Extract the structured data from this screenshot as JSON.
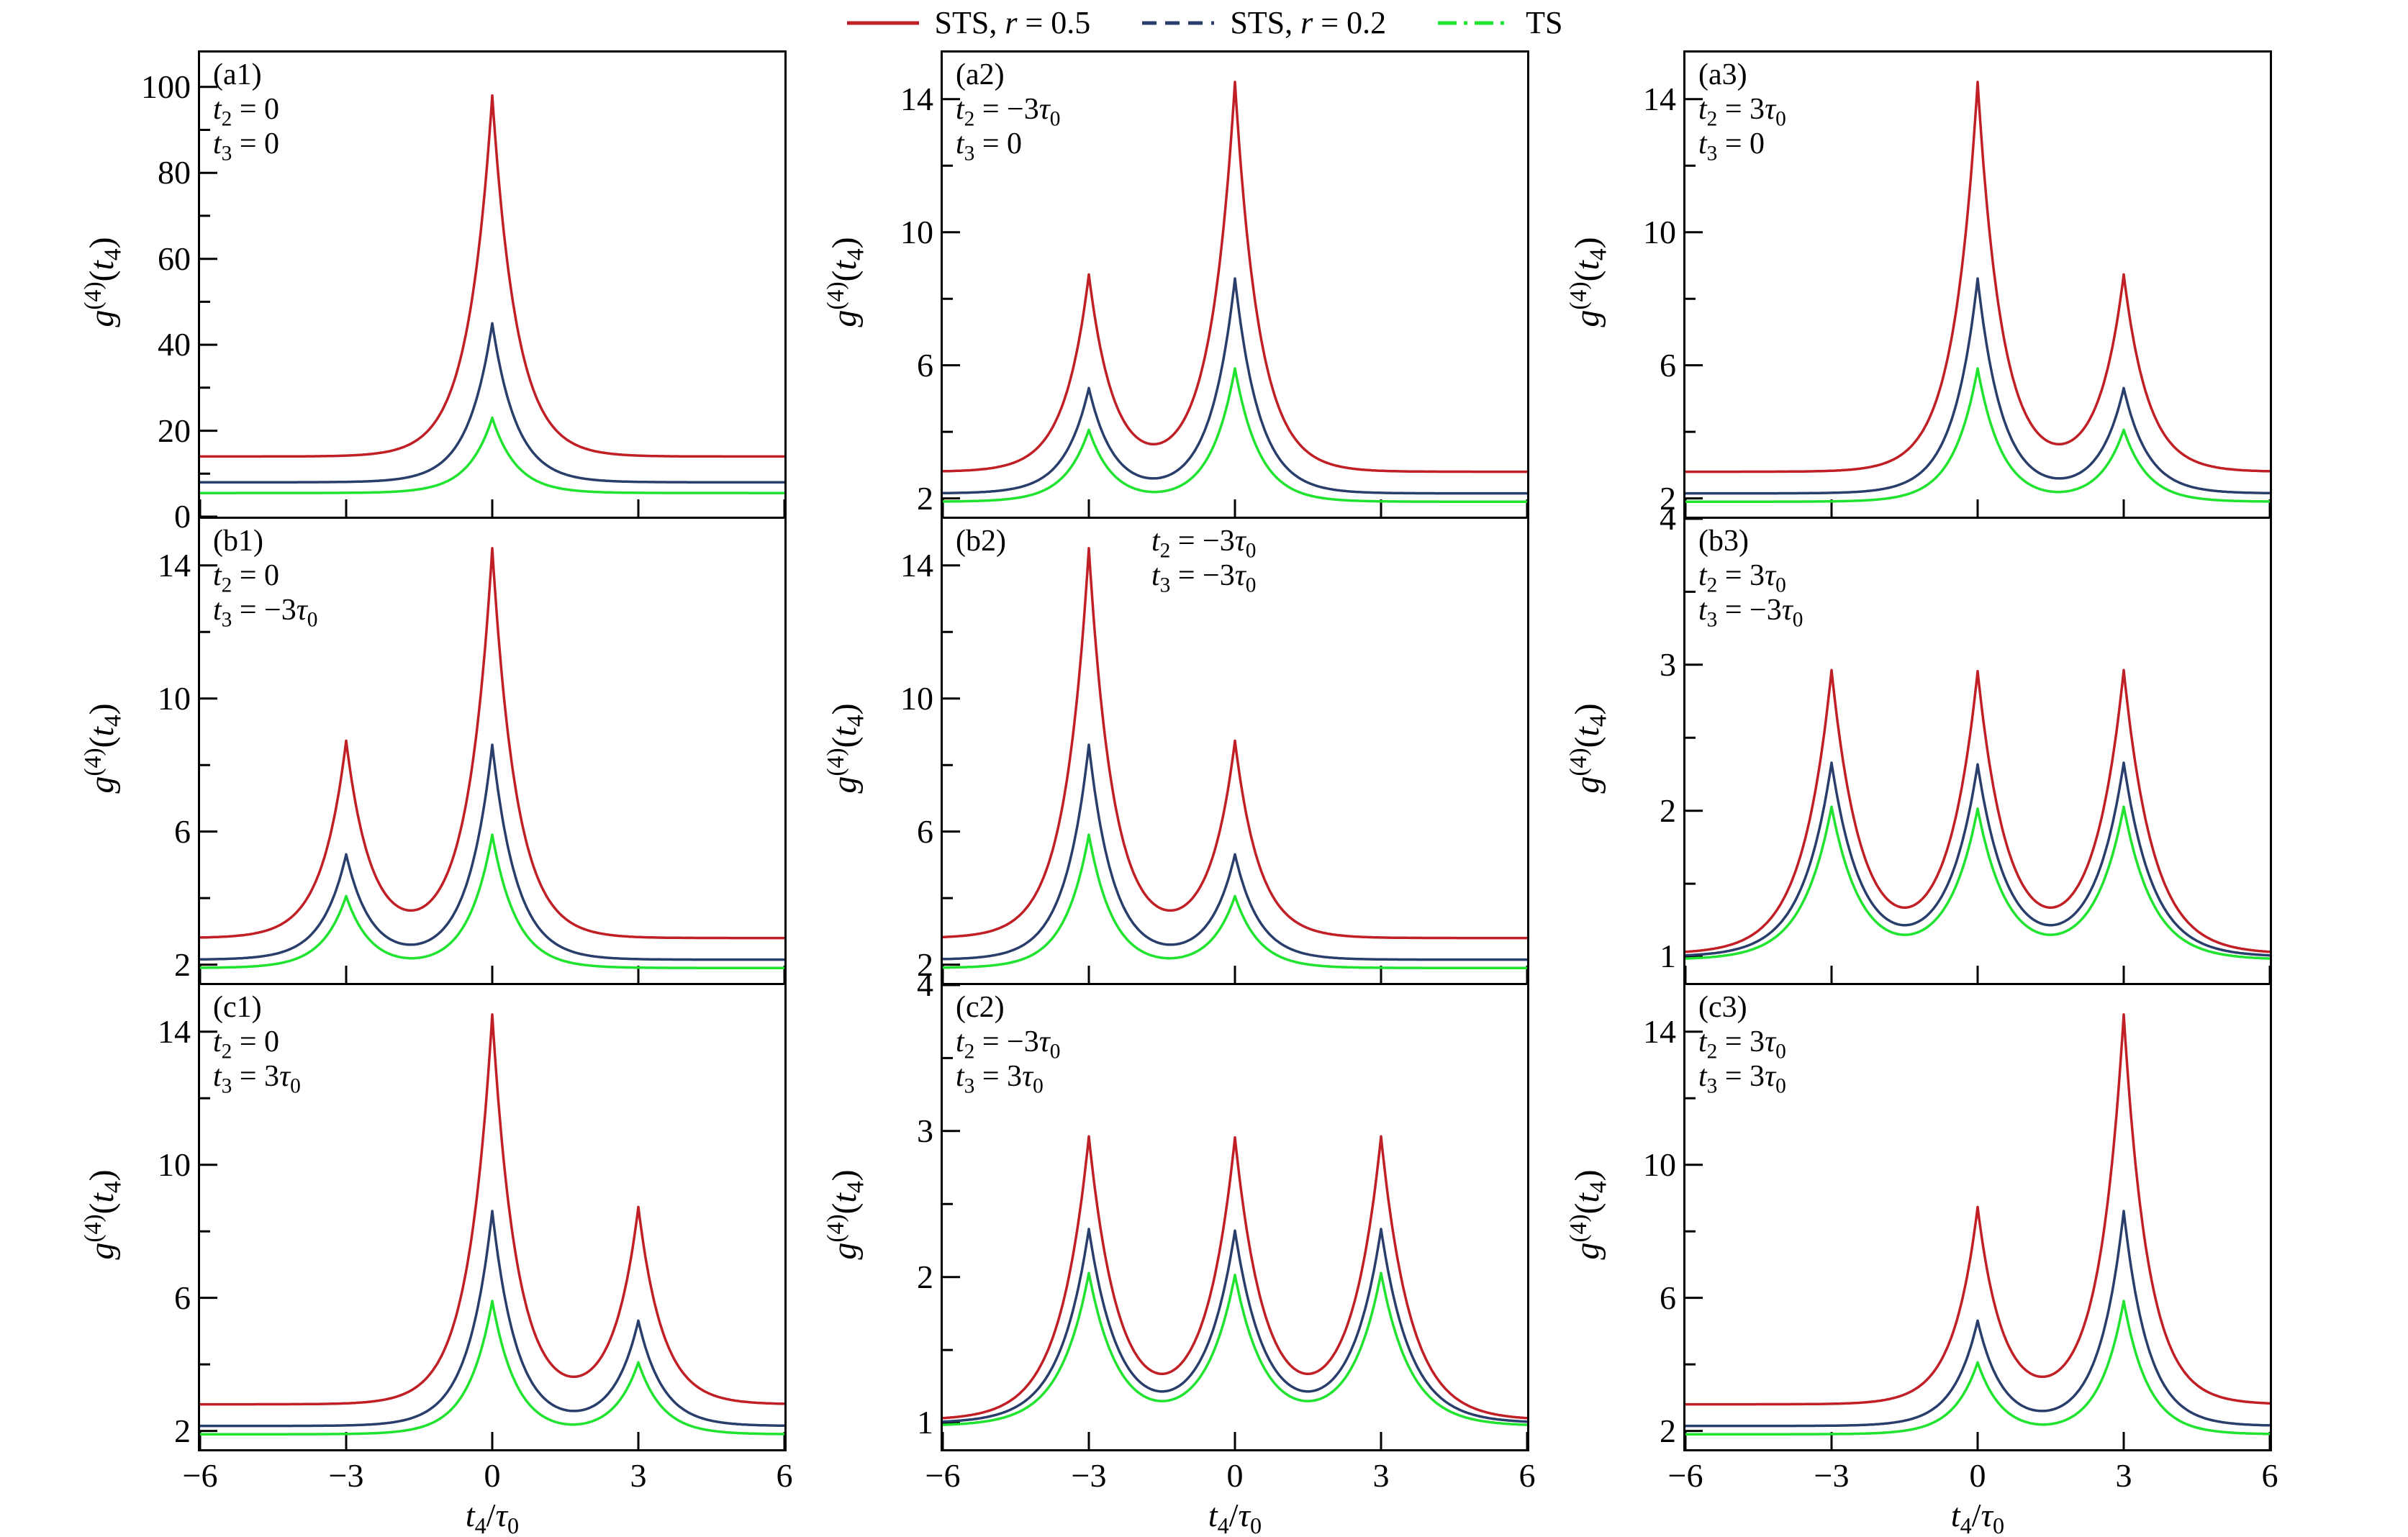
{
  "legend": {
    "items": [
      {
        "label": "STS, r = 0.5",
        "color": "#c01f25",
        "style": "solid"
      },
      {
        "label": "STS, r = 0.2",
        "color": "#2a3e6c",
        "style": "dashed"
      },
      {
        "label": "TS",
        "color": "#1fe32f",
        "style": "dashdot"
      }
    ]
  },
  "axes": {
    "xlabel": "t_4/τ_0",
    "ylabel": "g^(4)(t_4)",
    "x_range": [
      -6,
      6
    ],
    "x_ticks": [
      -6,
      -3,
      0,
      3,
      6
    ],
    "x_tick_labels": [
      "−6",
      "−3",
      "0",
      "3",
      "6"
    ],
    "grid": false,
    "legend_position": "top-center"
  },
  "series_colors": [
    "#c01f25",
    "#2a3e6c",
    "#1fe32f"
  ],
  "series_names": [
    "STS, r = 0.5",
    "STS, r = 0.2",
    "TS"
  ],
  "chart_data": [
    {
      "type": "line",
      "id": "a1",
      "label": "(a1)",
      "params": [
        "t_2 = 0",
        "t_3 = 0"
      ],
      "params_offset": false,
      "y_range": [
        0,
        108
      ],
      "y_ticks": [
        0,
        20,
        40,
        60,
        80,
        100
      ],
      "y_minor": [
        10,
        30,
        50,
        70,
        90
      ],
      "peak_centers": [
        0
      ],
      "peak_width": 0.5,
      "series": [
        {
          "name": "STS, r = 0.5",
          "baseline": 14,
          "peak_heights": [
            98
          ]
        },
        {
          "name": "STS, r = 0.2",
          "baseline": 8,
          "peak_heights": [
            45
          ]
        },
        {
          "name": "TS",
          "baseline": 5.5,
          "peak_heights": [
            23
          ]
        }
      ]
    },
    {
      "type": "line",
      "id": "a2",
      "label": "(a2)",
      "params": [
        "t_2 = −3τ_0",
        "t_3 = 0"
      ],
      "params_offset": false,
      "y_range": [
        1.45,
        15.4
      ],
      "y_ticks": [
        2,
        6,
        10,
        14
      ],
      "y_minor": [
        4,
        8,
        12
      ],
      "peak_centers": [
        -3,
        0
      ],
      "peak_width": 0.5,
      "series": [
        {
          "name": "STS, r = 0.5",
          "baseline": 2.8,
          "peak_heights": [
            8.7,
            14.5
          ]
        },
        {
          "name": "STS, r = 0.2",
          "baseline": 2.15,
          "peak_heights": [
            5.3,
            8.6
          ]
        },
        {
          "name": "TS",
          "baseline": 1.9,
          "peak_heights": [
            4.05,
            5.9
          ]
        }
      ]
    },
    {
      "type": "line",
      "id": "a3",
      "label": "(a3)",
      "params": [
        "t_2 = 3τ_0",
        "t_3 = 0"
      ],
      "params_offset": false,
      "y_range": [
        1.45,
        15.4
      ],
      "y_ticks": [
        2,
        6,
        10,
        14
      ],
      "y_minor": [
        4,
        8,
        12
      ],
      "peak_centers": [
        0,
        3
      ],
      "peak_width": 0.5,
      "series": [
        {
          "name": "STS, r = 0.5",
          "baseline": 2.8,
          "peak_heights": [
            14.5,
            8.7
          ]
        },
        {
          "name": "STS, r = 0.2",
          "baseline": 2.15,
          "peak_heights": [
            8.6,
            5.3
          ]
        },
        {
          "name": "TS",
          "baseline": 1.9,
          "peak_heights": [
            5.9,
            4.05
          ]
        }
      ]
    },
    {
      "type": "line",
      "id": "b1",
      "label": "(b1)",
      "params": [
        "t_2 = 0",
        "t_3 = −3τ_0"
      ],
      "params_offset": false,
      "y_range": [
        1.45,
        15.4
      ],
      "y_ticks": [
        2,
        6,
        10,
        14
      ],
      "y_minor": [
        4,
        8,
        12
      ],
      "peak_centers": [
        -3,
        0
      ],
      "peak_width": 0.5,
      "series": [
        {
          "name": "STS, r = 0.5",
          "baseline": 2.8,
          "peak_heights": [
            8.7,
            14.5
          ]
        },
        {
          "name": "STS, r = 0.2",
          "baseline": 2.15,
          "peak_heights": [
            5.3,
            8.6
          ]
        },
        {
          "name": "TS",
          "baseline": 1.9,
          "peak_heights": [
            4.05,
            5.9
          ]
        }
      ]
    },
    {
      "type": "line",
      "id": "b2",
      "label": "(b2)",
      "params": [
        "t_2 = −3τ_0",
        "t_3 = −3τ_0"
      ],
      "params_offset": true,
      "y_range": [
        1.45,
        15.4
      ],
      "y_ticks": [
        2,
        6,
        10,
        14
      ],
      "y_minor": [
        4,
        8,
        12
      ],
      "peak_centers": [
        -3,
        0
      ],
      "peak_width": 0.5,
      "series": [
        {
          "name": "STS, r = 0.5",
          "baseline": 2.8,
          "peak_heights": [
            14.5,
            8.7
          ]
        },
        {
          "name": "STS, r = 0.2",
          "baseline": 2.15,
          "peak_heights": [
            8.6,
            5.3
          ]
        },
        {
          "name": "TS",
          "baseline": 1.9,
          "peak_heights": [
            5.9,
            4.05
          ]
        }
      ]
    },
    {
      "type": "line",
      "id": "b3",
      "label": "(b3)",
      "params": [
        "t_2 = 3τ_0",
        "t_3 = −3τ_0"
      ],
      "params_offset": false,
      "y_range": [
        0.82,
        4
      ],
      "y_ticks": [
        1,
        2,
        3,
        4
      ],
      "y_minor": [
        1.5,
        2.5,
        3.5
      ],
      "peak_centers": [
        -3,
        0,
        3
      ],
      "peak_width": 0.6,
      "series": [
        {
          "name": "STS, r = 0.5",
          "baseline": 1.02,
          "peak_heights": [
            2.95,
            2.93,
            2.95
          ]
        },
        {
          "name": "STS, r = 0.2",
          "baseline": 1.0,
          "peak_heights": [
            2.32,
            2.3,
            2.32
          ]
        },
        {
          "name": "TS",
          "baseline": 0.98,
          "peak_heights": [
            2.02,
            2.0,
            2.02
          ]
        }
      ]
    },
    {
      "type": "line",
      "id": "c1",
      "label": "(c1)",
      "params": [
        "t_2 = 0",
        "t_3 = 3τ_0"
      ],
      "params_offset": false,
      "y_range": [
        1.45,
        15.4
      ],
      "y_ticks": [
        2,
        6,
        10,
        14
      ],
      "y_minor": [
        4,
        8,
        12
      ],
      "peak_centers": [
        0,
        3
      ],
      "peak_width": 0.5,
      "series": [
        {
          "name": "STS, r = 0.5",
          "baseline": 2.8,
          "peak_heights": [
            14.5,
            8.7
          ]
        },
        {
          "name": "STS, r = 0.2",
          "baseline": 2.15,
          "peak_heights": [
            8.6,
            5.3
          ]
        },
        {
          "name": "TS",
          "baseline": 1.9,
          "peak_heights": [
            5.9,
            4.05
          ]
        }
      ]
    },
    {
      "type": "line",
      "id": "c2",
      "label": "(c2)",
      "params": [
        "t_2 = −3τ_0",
        "t_3 = 3τ_0"
      ],
      "params_offset": false,
      "y_range": [
        0.82,
        4
      ],
      "y_ticks": [
        1,
        2,
        3,
        4
      ],
      "y_minor": [
        1.5,
        2.5,
        3.5
      ],
      "peak_centers": [
        -3,
        0,
        3
      ],
      "peak_width": 0.6,
      "series": [
        {
          "name": "STS, r = 0.5",
          "baseline": 1.02,
          "peak_heights": [
            2.95,
            2.93,
            2.95
          ]
        },
        {
          "name": "STS, r = 0.2",
          "baseline": 1.0,
          "peak_heights": [
            2.32,
            2.3,
            2.32
          ]
        },
        {
          "name": "TS",
          "baseline": 0.98,
          "peak_heights": [
            2.02,
            2.0,
            2.02
          ]
        }
      ]
    },
    {
      "type": "line",
      "id": "c3",
      "label": "(c3)",
      "params": [
        "t_2 = 3τ_0",
        "t_3 = 3τ_0"
      ],
      "params_offset": false,
      "y_range": [
        1.45,
        15.4
      ],
      "y_ticks": [
        2,
        6,
        10,
        14
      ],
      "y_minor": [
        4,
        8,
        12
      ],
      "peak_centers": [
        0,
        3
      ],
      "peak_width": 0.5,
      "series": [
        {
          "name": "STS, r = 0.5",
          "baseline": 2.8,
          "peak_heights": [
            8.7,
            14.5
          ]
        },
        {
          "name": "STS, r = 0.2",
          "baseline": 2.15,
          "peak_heights": [
            5.3,
            8.6
          ]
        },
        {
          "name": "TS",
          "baseline": 1.9,
          "peak_heights": [
            4.05,
            5.9
          ]
        }
      ]
    }
  ]
}
